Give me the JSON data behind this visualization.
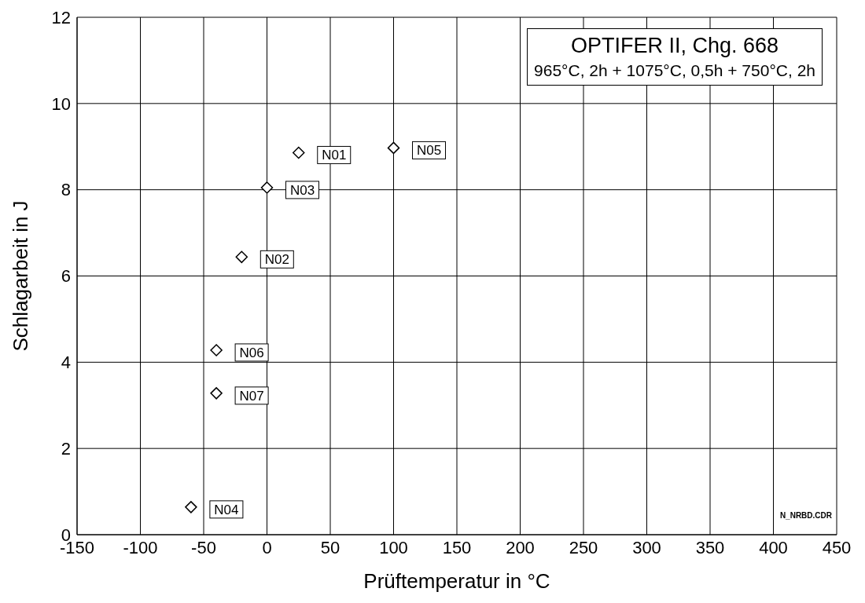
{
  "chart_data": {
    "type": "scatter",
    "title": "OPTIFER II,  Chg. 668",
    "subtitle": "965°C, 2h + 1075°C, 0,5h + 750°C, 2h",
    "xlabel": "Prüftemperatur in °C",
    "ylabel": "Schlagarbeit in J",
    "x": [
      25,
      100,
      0,
      -20,
      -40,
      -40,
      -60
    ],
    "series": [
      {
        "color": "#000000",
        "values": [
          8.86,
          8.97,
          8.05,
          6.44,
          4.28,
          3.28,
          0.64
        ]
      }
    ],
    "xlim": [
      -150,
      450
    ],
    "xticks": [
      -150,
      -100,
      -50,
      0,
      50,
      100,
      150,
      200,
      250,
      300,
      350,
      400,
      450
    ],
    "ylim": [
      0,
      12
    ],
    "yticks": [
      0,
      2,
      4,
      6,
      8,
      10,
      12
    ],
    "grid": true,
    "marker": "diamond",
    "annotations": [
      {
        "text": "N01",
        "x": 25,
        "y": 8.86
      },
      {
        "text": "N05",
        "x": 100,
        "y": 8.97
      },
      {
        "text": "N03",
        "x": 0,
        "y": 8.05
      },
      {
        "text": "N02",
        "x": -20,
        "y": 6.44
      },
      {
        "text": "N06",
        "x": -40,
        "y": 4.28
      },
      {
        "text": "N07",
        "x": -40,
        "y": 3.28
      },
      {
        "text": "N04",
        "x": -60,
        "y": 0.64
      },
      "N_NRBD.CDR"
    ]
  }
}
